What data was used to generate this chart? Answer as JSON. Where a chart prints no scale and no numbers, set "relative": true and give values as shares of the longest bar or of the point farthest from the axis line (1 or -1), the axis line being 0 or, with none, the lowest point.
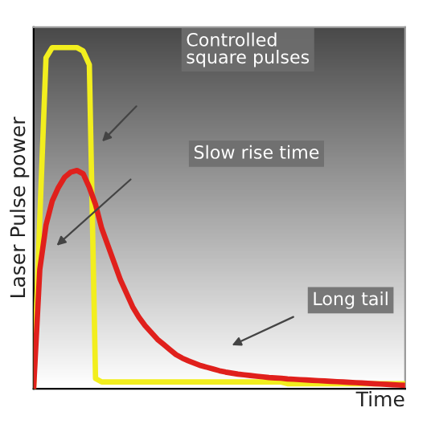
{
  "chart_data": {
    "type": "line",
    "relative": true,
    "xlabel": "Time",
    "ylabel": "Laser Pulse power",
    "categories": [
      null,
      null,
      null,
      null,
      null,
      null,
      null,
      null,
      null,
      null,
      null,
      null,
      null,
      null,
      null,
      null,
      null,
      null,
      null,
      null,
      null,
      null,
      null,
      null,
      null,
      null,
      null,
      null,
      null,
      null,
      null,
      null,
      null,
      null,
      null,
      null,
      null,
      null,
      null,
      null,
      null,
      null,
      null,
      null,
      null,
      null,
      null,
      null,
      null,
      null,
      null,
      null,
      null,
      null,
      null,
      null,
      null,
      null,
      null,
      null,
      null
    ],
    "series": [
      {
        "color": "#f2ee1e",
        "values": [
          0,
          0.5,
          0.97,
          1,
          1,
          1,
          1,
          1,
          0.99,
          0.95,
          0.03,
          0.02,
          0.02,
          0.02,
          0.02,
          0.02,
          0.02,
          0.02,
          0.02,
          0.02,
          0.02,
          0.02,
          0.02,
          0.02,
          0.02,
          0.02,
          0.02,
          0.02,
          0.02,
          0.02,
          0.02,
          0.02,
          0.02,
          0.02,
          0.02,
          0.02,
          0.02,
          0.02,
          0.02,
          0.02,
          0.02,
          0.015,
          0.015,
          0.015,
          0.015,
          0.015,
          0.015,
          0.015,
          0.015,
          0.015,
          0.015,
          0.015,
          0.015,
          0.015,
          0.015,
          0.015,
          0.015,
          0.015,
          0.015,
          0.015,
          0.015
        ]
      },
      {
        "color": "#e0201c",
        "values": [
          0,
          0.35,
          0.48,
          0.55,
          0.59,
          0.62,
          0.635,
          0.64,
          0.63,
          0.59,
          0.54,
          0.47,
          0.42,
          0.37,
          0.32,
          0.28,
          0.24,
          0.21,
          0.185,
          0.165,
          0.145,
          0.13,
          0.115,
          0.1,
          0.09,
          0.082,
          0.075,
          0.068,
          0.063,
          0.058,
          0.053,
          0.049,
          0.046,
          0.043,
          0.041,
          0.039,
          0.037,
          0.035,
          0.033,
          0.032,
          0.031,
          0.029,
          0.028,
          0.027,
          0.026,
          0.025,
          0.024,
          0.023,
          0.022,
          0.021,
          0.02,
          0.019,
          0.018,
          0.017,
          0.016,
          0.015,
          0.014,
          0.013,
          0.012,
          0.011,
          0.01
        ]
      }
    ],
    "annotations": [
      "Controlled\nsquare pulses",
      "Slow rise time",
      "Long tail"
    ]
  }
}
